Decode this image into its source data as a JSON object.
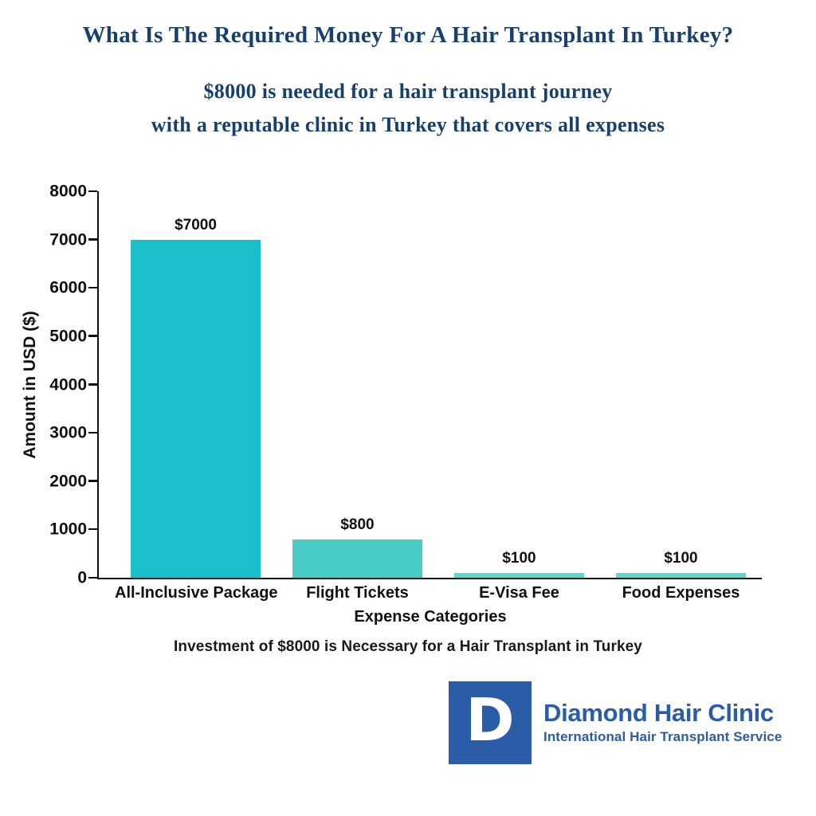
{
  "title": "What Is The Required Money For A Hair Transplant In Turkey?",
  "subtitle": {
    "line1": "$8000 is needed for a hair transplant journey",
    "line2": "with a reputable clinic in Turkey that covers all expenses"
  },
  "colors": {
    "heading_navy": "#17406F",
    "logo_blue": "#2B5CA7",
    "ink": "#111111",
    "bar_teal_dark": "#1ABFC9",
    "bar_teal_mid": "#49CCC5",
    "bar_teal_light": "#5ADACD"
  },
  "chart_data": {
    "type": "bar",
    "categories": [
      "All-Inclusive Package",
      "Flight Tickets",
      "E-Visa Fee",
      "Food Expenses"
    ],
    "values": [
      7000,
      800,
      100,
      100
    ],
    "value_labels": [
      "$7000",
      "$800",
      "$100",
      "$100"
    ],
    "bar_colors": [
      "#1ABFC9",
      "#49CCC5",
      "#5ADACD",
      "#5ADACD"
    ],
    "xlabel": "Expense Categories",
    "ylabel": "Amount in USD ($)",
    "ylim": [
      0,
      8000
    ],
    "yticks": [
      0,
      1000,
      2000,
      3000,
      4000,
      5000,
      6000,
      7000,
      8000
    ],
    "grid": false,
    "legend": null
  },
  "caption": "Investment of $8000 is Necessary for a Hair Transplant in Turkey",
  "logo": {
    "monogram": "D",
    "name": "Diamond Hair Clinic",
    "tagline": "International Hair Transplant Service"
  }
}
